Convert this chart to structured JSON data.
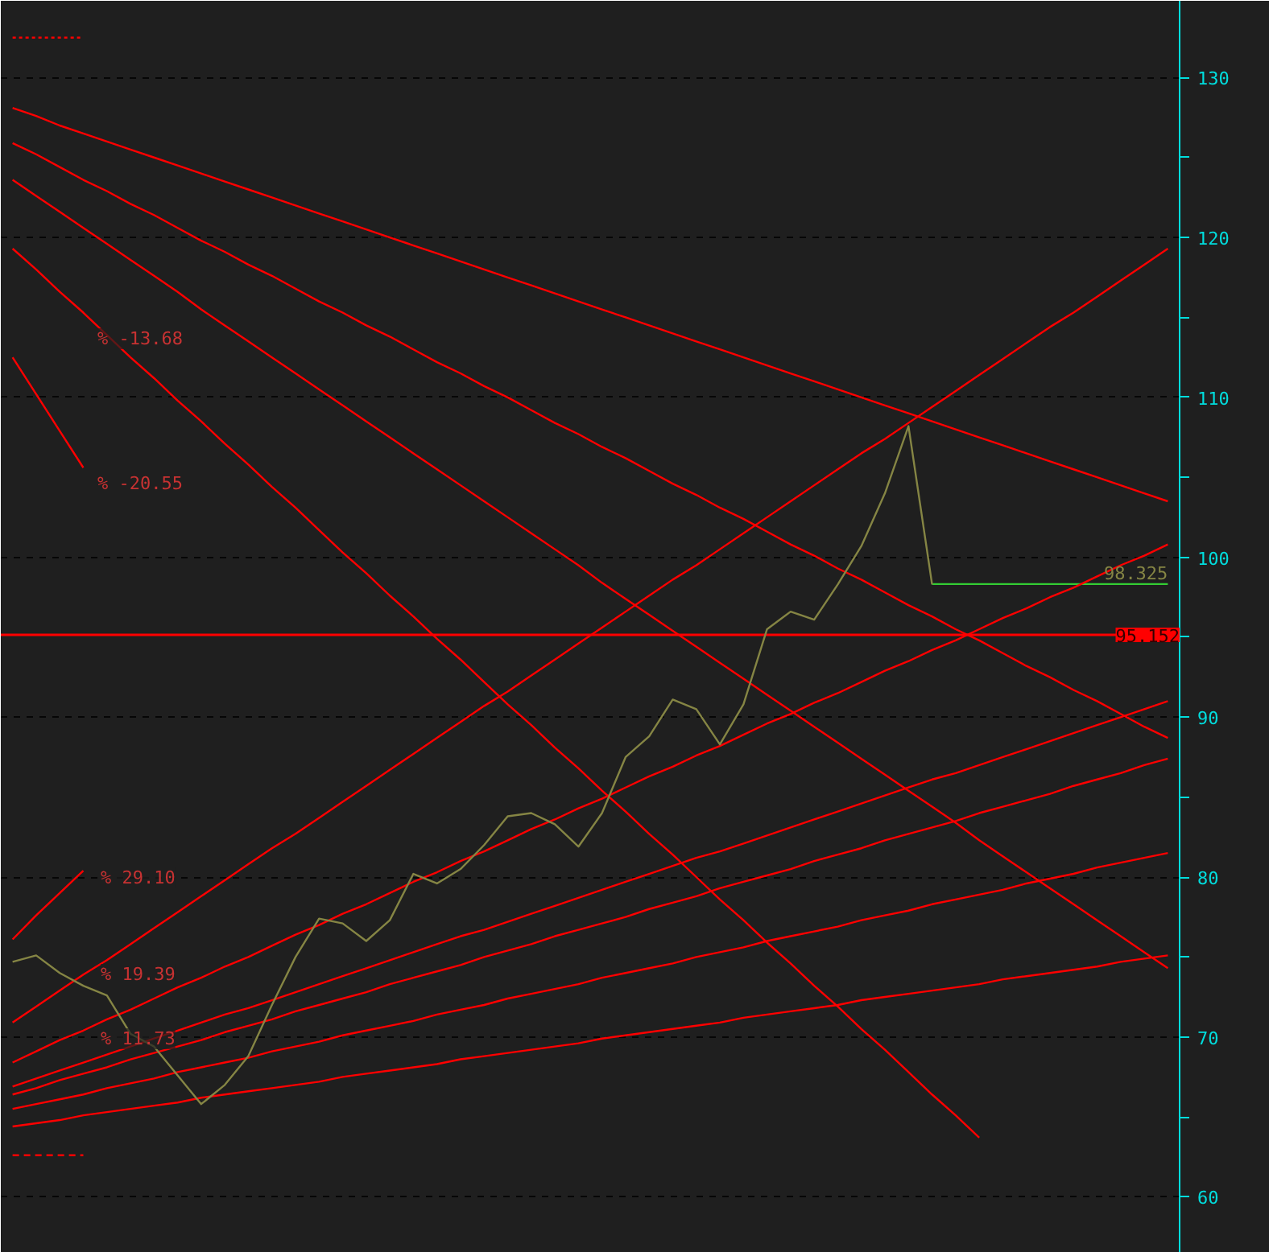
{
  "chart_data": {
    "type": "line",
    "categories": [
      null,
      null,
      null,
      null,
      null,
      null,
      null,
      null,
      null,
      null,
      null,
      null,
      null,
      null,
      null,
      null,
      null,
      null,
      null,
      null,
      null,
      null,
      null,
      null,
      null,
      null,
      null,
      null,
      null,
      null,
      null,
      null,
      null,
      null,
      null,
      null,
      null,
      null,
      null,
      null,
      null,
      null,
      null,
      null,
      null,
      null,
      null,
      null,
      null,
      null
    ],
    "ylim": [
      56.5,
      134.8
    ],
    "yticks": [
      60,
      {
        "value": 65,
        "label": null
      },
      70,
      {
        "value": 75,
        "label": null
      },
      80,
      {
        "value": 85,
        "label": null
      },
      90,
      {
        "value": 95,
        "label": null
      },
      100,
      {
        "value": 105,
        "label": null
      },
      110,
      {
        "value": 115,
        "label": null
      },
      120,
      {
        "value": 125,
        "label": null
      },
      130
    ],
    "tick_labels": "y",
    "grid": "y",
    "line_style": "solid",
    "series": [
      {
        "color": "#858544",
        "values": [
          74.7,
          75.1,
          74.0,
          73.2,
          72.6,
          70.2,
          69.4,
          67.6,
          65.8,
          67.0,
          68.8,
          72.0,
          75.0,
          77.4,
          77.1,
          76.0,
          77.3,
          80.2,
          79.6,
          80.5,
          82.0,
          83.8,
          84.0,
          83.3,
          81.9,
          84.0,
          87.5,
          88.8,
          91.1,
          90.5,
          88.3,
          90.8,
          95.5,
          96.6,
          96.1,
          98.3,
          100.7,
          104.0,
          108.2,
          98.3,
          null,
          null,
          null,
          null,
          null,
          null,
          null,
          null,
          null,
          null
        ]
      },
      {
        "color": "#33cc33",
        "values": [
          null,
          null,
          null,
          null,
          null,
          null,
          null,
          null,
          null,
          null,
          null,
          null,
          null,
          null,
          null,
          null,
          null,
          null,
          null,
          null,
          null,
          null,
          null,
          null,
          null,
          null,
          null,
          null,
          null,
          null,
          null,
          null,
          null,
          null,
          null,
          null,
          null,
          null,
          null,
          98.325,
          98.325,
          98.325,
          98.325,
          98.325,
          98.325,
          98.325,
          98.325,
          98.325,
          98.325,
          98.325
        ],
        "value_labels": [
          null,
          null,
          null,
          null,
          null,
          null,
          null,
          null,
          null,
          null,
          null,
          null,
          null,
          null,
          null,
          null,
          null,
          null,
          null,
          null,
          null,
          null,
          null,
          null,
          null,
          null,
          null,
          null,
          null,
          null,
          null,
          null,
          null,
          null,
          null,
          null,
          null,
          null,
          null,
          null,
          null,
          null,
          null,
          null,
          null,
          null,
          null,
          null,
          null,
          "98.325"
        ]
      },
      {
        "color": "#ff0000",
        "values": [
          128.1,
          127.6,
          127.0,
          126.5,
          126.0,
          125.5,
          125.0,
          124.5,
          124.0,
          123.5,
          123.0,
          122.5,
          122.0,
          121.5,
          121.0,
          120.5,
          120.0,
          119.5,
          119.0,
          118.5,
          118.0,
          117.5,
          117.0,
          116.5,
          116.0,
          115.5,
          115.0,
          114.5,
          114.0,
          113.5,
          113.0,
          112.5,
          112.0,
          111.5,
          111.0,
          110.5,
          110.0,
          109.5,
          109.0,
          108.5,
          108.0,
          107.5,
          107.0,
          106.5,
          106.0,
          105.5,
          105.0,
          104.5,
          104.0,
          103.5
        ]
      },
      {
        "color": "#ff0000",
        "values": [
          125.9,
          125.2,
          124.4,
          123.6,
          122.9,
          122.1,
          121.4,
          120.6,
          119.8,
          119.1,
          118.3,
          117.6,
          116.8,
          116.0,
          115.3,
          114.5,
          113.8,
          113.0,
          112.2,
          111.5,
          110.7,
          110.0,
          109.2,
          108.4,
          107.7,
          106.9,
          106.2,
          105.4,
          104.6,
          103.9,
          103.1,
          102.4,
          101.6,
          100.8,
          100.1,
          99.3,
          98.6,
          97.8,
          97.0,
          96.3,
          95.5,
          94.8,
          94.0,
          93.2,
          92.5,
          91.7,
          91.0,
          90.2,
          89.4,
          88.7
        ]
      },
      {
        "color": "#ff0000",
        "values": [
          123.6,
          122.6,
          121.6,
          120.6,
          119.6,
          118.6,
          117.6,
          116.6,
          115.5,
          114.5,
          113.5,
          112.5,
          111.5,
          110.5,
          109.5,
          108.5,
          107.5,
          106.5,
          105.5,
          104.5,
          103.5,
          102.5,
          101.5,
          100.5,
          99.5,
          98.4,
          97.4,
          96.4,
          95.4,
          94.4,
          93.4,
          92.4,
          91.4,
          90.4,
          89.4,
          88.4,
          87.4,
          86.4,
          85.4,
          84.4,
          83.4,
          82.3,
          81.3,
          80.3,
          79.3,
          78.3,
          77.3,
          76.3,
          75.3,
          74.3
        ]
      },
      {
        "color": "#ff0000",
        "values": [
          119.3,
          118.0,
          116.6,
          115.3,
          113.9,
          112.5,
          111.2,
          109.8,
          108.5,
          107.1,
          105.8,
          104.4,
          103.1,
          101.7,
          100.3,
          99.0,
          97.6,
          96.3,
          94.9,
          93.6,
          92.2,
          90.8,
          89.5,
          88.1,
          86.8,
          85.4,
          84.1,
          82.7,
          81.4,
          80.0,
          78.6,
          77.3,
          75.9,
          74.6,
          73.2,
          71.9,
          70.5,
          69.2,
          67.8,
          66.4,
          65.1,
          63.7,
          null,
          null,
          null,
          null,
          null,
          null,
          null,
          null
        ]
      },
      {
        "color": "#ff0000",
        "values": [
          112.5,
          110.2,
          107.9,
          105.6,
          null,
          null,
          null,
          null,
          null,
          null,
          null,
          null,
          null,
          null,
          null,
          null,
          null,
          null,
          null,
          null,
          null,
          null,
          null,
          null,
          null,
          null,
          null,
          null,
          null,
          null,
          null,
          null,
          null,
          null,
          null,
          null,
          null,
          null,
          null,
          null,
          null,
          null,
          null,
          null,
          null,
          null,
          null,
          null,
          null,
          null
        ]
      },
      {
        "color": "#ff0000",
        "line_style": "dotted",
        "values": [
          132.5,
          132.5,
          132.5,
          132.5,
          null,
          null,
          null,
          null,
          null,
          null,
          null,
          null,
          null,
          null,
          null,
          null,
          null,
          null,
          null,
          null,
          null,
          null,
          null,
          null,
          null,
          null,
          null,
          null,
          null,
          null,
          null,
          null,
          null,
          null,
          null,
          null,
          null,
          null,
          null,
          null,
          null,
          null,
          null,
          null,
          null,
          null,
          null,
          null,
          null,
          null
        ]
      },
      {
        "color": "#ff0000",
        "values": [
          70.9,
          71.9,
          72.9,
          73.9,
          74.8,
          75.8,
          76.8,
          77.8,
          78.8,
          79.8,
          80.8,
          81.8,
          82.7,
          83.7,
          84.7,
          85.7,
          86.7,
          87.7,
          88.7,
          89.7,
          90.7,
          91.6,
          92.6,
          93.6,
          94.6,
          95.6,
          96.6,
          97.6,
          98.6,
          99.5,
          100.5,
          101.5,
          102.5,
          103.5,
          104.5,
          105.5,
          106.5,
          107.4,
          108.4,
          109.4,
          110.4,
          111.4,
          112.4,
          113.4,
          114.4,
          115.3,
          116.3,
          117.3,
          118.3,
          119.3
        ]
      },
      {
        "color": "#ff0000",
        "values": [
          68.4,
          69.1,
          69.8,
          70.4,
          71.1,
          71.7,
          72.4,
          73.1,
          73.7,
          74.4,
          75.0,
          75.7,
          76.4,
          77.0,
          77.7,
          78.3,
          79.0,
          79.7,
          80.3,
          81.0,
          81.6,
          82.3,
          83.0,
          83.6,
          84.3,
          84.9,
          85.6,
          86.3,
          86.9,
          87.6,
          88.2,
          88.9,
          89.6,
          90.2,
          90.9,
          91.5,
          92.2,
          92.9,
          93.5,
          94.2,
          94.8,
          95.5,
          96.2,
          96.8,
          97.5,
          98.1,
          98.8,
          99.5,
          100.1,
          100.8
        ]
      },
      {
        "color": "#ff0000",
        "values": [
          66.9,
          67.4,
          67.9,
          68.4,
          68.9,
          69.4,
          69.9,
          70.4,
          70.9,
          71.4,
          71.8,
          72.3,
          72.8,
          73.3,
          73.8,
          74.3,
          74.8,
          75.3,
          75.8,
          76.3,
          76.7,
          77.2,
          77.7,
          78.2,
          78.7,
          79.2,
          79.7,
          80.2,
          80.7,
          81.2,
          81.6,
          82.1,
          82.6,
          83.1,
          83.6,
          84.1,
          84.6,
          85.1,
          85.6,
          86.1,
          86.5,
          87.0,
          87.5,
          88.0,
          88.5,
          89.0,
          89.5,
          90.0,
          90.5,
          91.0
        ]
      },
      {
        "color": "#ff0000",
        "values": [
          66.4,
          66.8,
          67.3,
          67.7,
          68.1,
          68.6,
          69.0,
          69.4,
          69.8,
          70.3,
          70.7,
          71.1,
          71.6,
          72.0,
          72.4,
          72.8,
          73.3,
          73.7,
          74.1,
          74.5,
          75.0,
          75.4,
          75.8,
          76.3,
          76.7,
          77.1,
          77.5,
          78.0,
          78.4,
          78.8,
          79.3,
          79.7,
          80.1,
          80.5,
          81.0,
          81.4,
          81.8,
          82.3,
          82.7,
          83.1,
          83.5,
          84.0,
          84.4,
          84.8,
          85.2,
          85.7,
          86.1,
          86.5,
          87.0,
          87.4
        ]
      },
      {
        "color": "#ff0000",
        "values": [
          65.5,
          65.8,
          66.1,
          66.4,
          66.8,
          67.1,
          67.4,
          67.8,
          68.1,
          68.4,
          68.7,
          69.1,
          69.4,
          69.7,
          70.1,
          70.4,
          70.7,
          71.0,
          71.4,
          71.7,
          72.0,
          72.4,
          72.7,
          73.0,
          73.3,
          73.7,
          74.0,
          74.3,
          74.6,
          75.0,
          75.3,
          75.6,
          76.0,
          76.3,
          76.6,
          76.9,
          77.3,
          77.6,
          77.9,
          78.3,
          78.6,
          78.9,
          79.2,
          79.6,
          79.9,
          80.2,
          80.6,
          80.9,
          81.2,
          81.5
        ]
      },
      {
        "color": "#ff0000",
        "values": [
          64.4,
          64.6,
          64.8,
          65.1,
          65.3,
          65.5,
          65.7,
          65.9,
          66.2,
          66.4,
          66.6,
          66.8,
          67.0,
          67.2,
          67.5,
          67.7,
          67.9,
          68.1,
          68.3,
          68.6,
          68.8,
          69.0,
          69.2,
          69.4,
          69.6,
          69.9,
          70.1,
          70.3,
          70.5,
          70.7,
          70.9,
          71.2,
          71.4,
          71.6,
          71.8,
          72.0,
          72.3,
          72.5,
          72.7,
          72.9,
          73.1,
          73.3,
          73.6,
          73.8,
          74.0,
          74.2,
          74.4,
          74.7,
          74.9,
          75.1
        ]
      },
      {
        "color": "#ff0000",
        "values": [
          76.1,
          77.6,
          79.0,
          80.4,
          null,
          null,
          null,
          null,
          null,
          null,
          null,
          null,
          null,
          null,
          null,
          null,
          null,
          null,
          null,
          null,
          null,
          null,
          null,
          null,
          null,
          null,
          null,
          null,
          null,
          null,
          null,
          null,
          null,
          null,
          null,
          null,
          null,
          null,
          null,
          null,
          null,
          null,
          null,
          null,
          null,
          null,
          null,
          null,
          null,
          null
        ]
      },
      {
        "color": "#ff0000",
        "line_style": "dashed",
        "values": [
          62.6,
          62.6,
          62.6,
          62.6,
          null,
          null,
          null,
          null,
          null,
          null,
          null,
          null,
          null,
          null,
          null,
          null,
          null,
          null,
          null,
          null,
          null,
          null,
          null,
          null,
          null,
          null,
          null,
          null,
          null,
          null,
          null,
          null,
          null,
          null,
          null,
          null,
          null,
          null,
          null,
          null,
          null,
          null,
          null,
          null,
          null,
          null,
          null,
          null,
          null,
          null
        ]
      }
    ],
    "ref_lines": [
      {
        "axis": "y",
        "value": 95.152,
        "label": "95.152",
        "color": "#ff0000"
      }
    ],
    "annotations": [
      "% -13.68",
      "% -20.55",
      "% 29.10",
      "% 19.39",
      "% 11.73"
    ]
  }
}
